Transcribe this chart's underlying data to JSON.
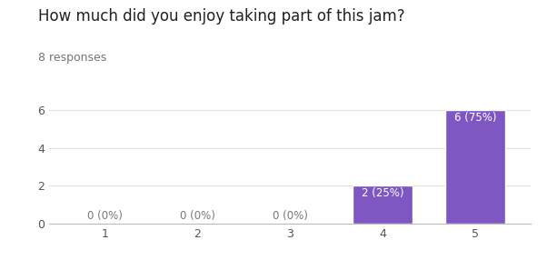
{
  "title": "How much did you enjoy taking part of this jam?",
  "subtitle": "8 responses",
  "categories": [
    1,
    2,
    3,
    4,
    5
  ],
  "values": [
    0,
    0,
    0,
    2,
    6
  ],
  "labels": [
    "0 (0%)",
    "0 (0%)",
    "0 (0%)",
    "2 (25%)",
    "6 (75%)"
  ],
  "bar_color": "#7E57C2",
  "bar_edge_color": "#ffffff",
  "label_color_inside": "#ffffff",
  "label_color_outside": "#777777",
  "ylim_max": 6.6,
  "yticks": [
    0,
    2,
    4,
    6
  ],
  "background_color": "#ffffff",
  "grid_color": "#e0e0e0",
  "title_fontsize": 12,
  "subtitle_fontsize": 9,
  "tick_fontsize": 9,
  "label_fontsize": 8.5,
  "bar_width": 0.65
}
